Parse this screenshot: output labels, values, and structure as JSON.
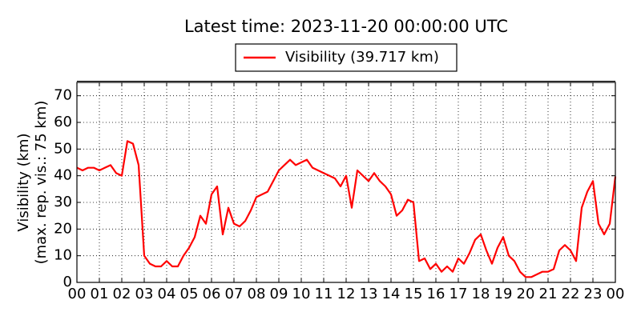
{
  "chart_data": {
    "type": "line",
    "title": "Latest time: 2023-11-20 00:00:00 UTC",
    "ylabel": [
      "Visibility (km)",
      "(max. rep. vis.: 75 km)"
    ],
    "x": [
      0,
      0.25,
      0.5,
      0.75,
      1,
      1.25,
      1.5,
      1.75,
      2,
      2.25,
      2.5,
      2.75,
      3,
      3.25,
      3.5,
      3.75,
      4,
      4.25,
      4.5,
      4.75,
      5,
      5.25,
      5.5,
      5.75,
      6,
      6.25,
      6.5,
      6.75,
      7,
      7.25,
      7.5,
      7.75,
      8,
      8.25,
      8.5,
      8.75,
      9,
      9.25,
      9.5,
      9.75,
      10,
      10.25,
      10.5,
      10.75,
      11,
      11.25,
      11.5,
      11.75,
      12,
      12.25,
      12.5,
      12.75,
      13,
      13.25,
      13.5,
      13.75,
      14,
      14.25,
      14.5,
      14.75,
      15,
      15.25,
      15.5,
      15.75,
      16,
      16.25,
      16.5,
      16.75,
      17,
      17.25,
      17.5,
      17.75,
      18,
      18.25,
      18.5,
      18.75,
      19,
      19.25,
      19.5,
      19.75,
      20,
      20.25,
      20.5,
      20.75,
      21,
      21.25,
      21.5,
      21.75,
      22,
      22.25,
      22.5,
      22.75,
      23,
      23.25,
      23.5,
      23.75,
      24
    ],
    "series": [
      {
        "name": "Visibility (39.717 km)",
        "color": "#ff0000",
        "values": [
          43,
          42,
          43,
          43,
          42,
          43,
          44,
          41,
          40,
          53,
          52,
          44,
          10,
          7,
          6,
          6,
          8,
          6,
          6,
          10,
          13,
          17,
          25,
          22,
          33,
          36,
          18,
          28,
          22,
          21,
          23,
          27,
          32,
          33,
          34,
          38,
          42,
          44,
          46,
          44,
          45,
          46,
          43,
          42,
          41,
          40,
          39,
          36,
          40,
          28,
          42,
          40,
          38,
          41,
          38,
          36,
          33,
          25,
          27,
          31,
          30,
          8,
          9,
          5,
          7,
          4,
          6,
          4,
          9,
          7,
          11,
          16,
          18,
          12,
          7,
          13,
          17,
          10,
          8,
          4,
          2,
          2,
          3,
          4,
          4,
          5,
          12,
          14,
          12,
          8,
          28,
          34,
          38,
          22,
          18,
          22,
          39.717
        ]
      }
    ],
    "xlim": [
      0,
      24
    ],
    "xticks": [
      {
        "value": 0,
        "label": "00"
      },
      {
        "value": 1,
        "label": "01"
      },
      {
        "value": 2,
        "label": "02"
      },
      {
        "value": 3,
        "label": "03"
      },
      {
        "value": 4,
        "label": "04"
      },
      {
        "value": 5,
        "label": "05"
      },
      {
        "value": 6,
        "label": "06"
      },
      {
        "value": 7,
        "label": "07"
      },
      {
        "value": 8,
        "label": "08"
      },
      {
        "value": 9,
        "label": "09"
      },
      {
        "value": 10,
        "label": "10"
      },
      {
        "value": 11,
        "label": "11"
      },
      {
        "value": 12,
        "label": "12"
      },
      {
        "value": 13,
        "label": "13"
      },
      {
        "value": 14,
        "label": "14"
      },
      {
        "value": 15,
        "label": "15"
      },
      {
        "value": 16,
        "label": "16"
      },
      {
        "value": 17,
        "label": "17"
      },
      {
        "value": 18,
        "label": "18"
      },
      {
        "value": 19,
        "label": "19"
      },
      {
        "value": 20,
        "label": "20"
      },
      {
        "value": 21,
        "label": "21"
      },
      {
        "value": 22,
        "label": "22"
      },
      {
        "value": 23,
        "label": "23"
      },
      {
        "value": 24,
        "label": "00"
      }
    ],
    "ylim": [
      0,
      75
    ],
    "yticks": [
      0,
      10,
      20,
      30,
      40,
      50,
      60,
      70
    ],
    "grid": true
  }
}
